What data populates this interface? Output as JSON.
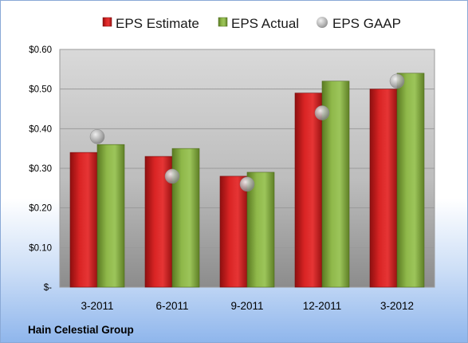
{
  "chart_data": {
    "type": "bar",
    "categories": [
      "3-2011",
      "6-2011",
      "9-2011",
      "12-2011",
      "3-2012"
    ],
    "series": [
      {
        "name": "EPS Estimate",
        "type": "bar",
        "color": "#cc1b1b",
        "values": [
          0.34,
          0.33,
          0.28,
          0.49,
          0.5
        ]
      },
      {
        "name": "EPS Actual",
        "type": "bar",
        "color": "#7fa53a",
        "values": [
          0.36,
          0.35,
          0.29,
          0.52,
          0.54
        ]
      },
      {
        "name": "EPS GAAP",
        "type": "marker",
        "color": "#a6a6a6",
        "values": [
          0.38,
          0.28,
          0.26,
          0.44,
          0.52
        ]
      }
    ],
    "y_ticks": [
      {
        "value": 0.0,
        "label": "$-"
      },
      {
        "value": 0.1,
        "label": "$0.10"
      },
      {
        "value": 0.2,
        "label": "$0.20"
      },
      {
        "value": 0.3,
        "label": "$0.30"
      },
      {
        "value": 0.4,
        "label": "$0.40"
      },
      {
        "value": 0.5,
        "label": "$0.50"
      },
      {
        "value": 0.6,
        "label": "$0.60"
      }
    ],
    "ylim": [
      0,
      0.6
    ],
    "grid": true,
    "legend_position": "top",
    "company": "Hain Celestial Group"
  }
}
